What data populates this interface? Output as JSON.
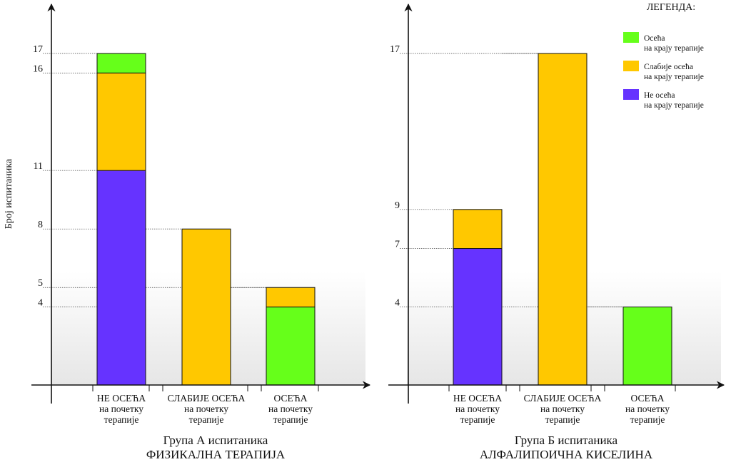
{
  "ylabel": "Број испитаника",
  "legend": {
    "title": "ЛЕГЕНДА:",
    "items": [
      {
        "line1": "Осећа",
        "line2": "на крају терапије",
        "color": "#66ff1a"
      },
      {
        "line1": "Слабије осећа",
        "line2": "на крају терапије",
        "color": "#ffc800"
      },
      {
        "line1": "Не осећа",
        "line2": "на крају терапије",
        "color": "#6633ff"
      }
    ]
  },
  "colors": {
    "green": "#66ff1a",
    "yellow": "#ffc800",
    "purple": "#6633ff"
  },
  "chart_data": [
    {
      "type": "bar",
      "stacked": true,
      "title": "Група А испитаника",
      "subtitle": "ФИЗИКАЛНА ТЕРАПИЈА",
      "categories": [
        [
          "НЕ ОСЕЋА",
          "на почетку",
          "терапије"
        ],
        [
          "СЛАБИЈЕ ОСЕЋА",
          "на почетку",
          "терапије"
        ],
        [
          "ОСЕЋА",
          "на почетку",
          "терапије"
        ]
      ],
      "bars": [
        [
          {
            "from": 0,
            "to": 11,
            "color": "#6633ff"
          },
          {
            "from": 11,
            "to": 16,
            "color": "#ffc800"
          },
          {
            "from": 16,
            "to": 17,
            "color": "#66ff1a"
          }
        ],
        [
          {
            "from": 0,
            "to": 8,
            "color": "#ffc800"
          }
        ],
        [
          {
            "from": 0,
            "to": 4,
            "color": "#66ff1a"
          },
          {
            "from": 4,
            "to": 5,
            "color": "#ffc800"
          }
        ]
      ],
      "yticks": [
        4,
        5,
        8,
        11,
        16,
        17
      ],
      "ylim": [
        0,
        17
      ]
    },
    {
      "type": "bar",
      "stacked": true,
      "title": "Група Б испитаника",
      "subtitle": "АЛФАЛИПОИЧНА КИСЕЛИНА",
      "categories": [
        [
          "НЕ ОСЕЋА",
          "на почетку",
          "терапије"
        ],
        [
          "СЛАБИЈЕ ОСЕЋА",
          "на почетку",
          "терапије"
        ],
        [
          "ОСЕЋА",
          "на почетку",
          "терапије"
        ]
      ],
      "bars": [
        [
          {
            "from": 0,
            "to": 7,
            "color": "#6633ff"
          },
          {
            "from": 7,
            "to": 9,
            "color": "#ffc800"
          }
        ],
        [
          {
            "from": 0,
            "to": 17,
            "color": "#ffc800"
          }
        ],
        [
          {
            "from": 0,
            "to": 4,
            "color": "#66ff1a"
          }
        ]
      ],
      "yticks": [
        4,
        7,
        9,
        17
      ],
      "ylim": [
        0,
        17
      ]
    }
  ]
}
